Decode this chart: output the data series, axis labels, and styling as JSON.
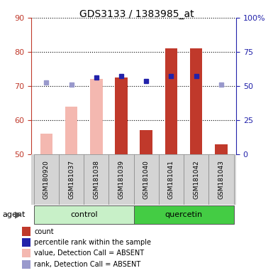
{
  "title": "GDS3133 / 1383985_at",
  "samples": [
    "GSM180920",
    "GSM181037",
    "GSM181038",
    "GSM181039",
    "GSM181040",
    "GSM181041",
    "GSM181042",
    "GSM181043"
  ],
  "bar_values_red": [
    null,
    null,
    null,
    72.5,
    57,
    81,
    81,
    53
  ],
  "bar_values_pink": [
    56,
    64,
    72,
    null,
    null,
    null,
    null,
    null
  ],
  "dot_blue_dark": [
    null,
    null,
    72.5,
    73,
    71.5,
    73,
    73,
    null
  ],
  "dot_blue_light": [
    71,
    70.5,
    null,
    null,
    null,
    null,
    null,
    70.5
  ],
  "ylim_left": [
    50,
    90
  ],
  "ylim_right": [
    0,
    100
  ],
  "yticks_left": [
    50,
    60,
    70,
    80,
    90
  ],
  "yticks_right": [
    0,
    25,
    50,
    75,
    100
  ],
  "ytick_labels_right": [
    "0",
    "25",
    "50",
    "75",
    "100%"
  ],
  "color_red": "#c0392b",
  "color_pink": "#f4b8b0",
  "color_blue_dark": "#2222aa",
  "color_blue_light": "#9999cc",
  "color_control_bg": "#c8f0c8",
  "color_quercetin_bg": "#44cc44",
  "color_sample_bg": "#d4d4d4",
  "bar_width": 0.5,
  "legend_labels": [
    "count",
    "percentile rank within the sample",
    "value, Detection Call = ABSENT",
    "rank, Detection Call = ABSENT"
  ],
  "legend_colors": [
    "#c0392b",
    "#2222aa",
    "#f4b8b0",
    "#9999cc"
  ]
}
